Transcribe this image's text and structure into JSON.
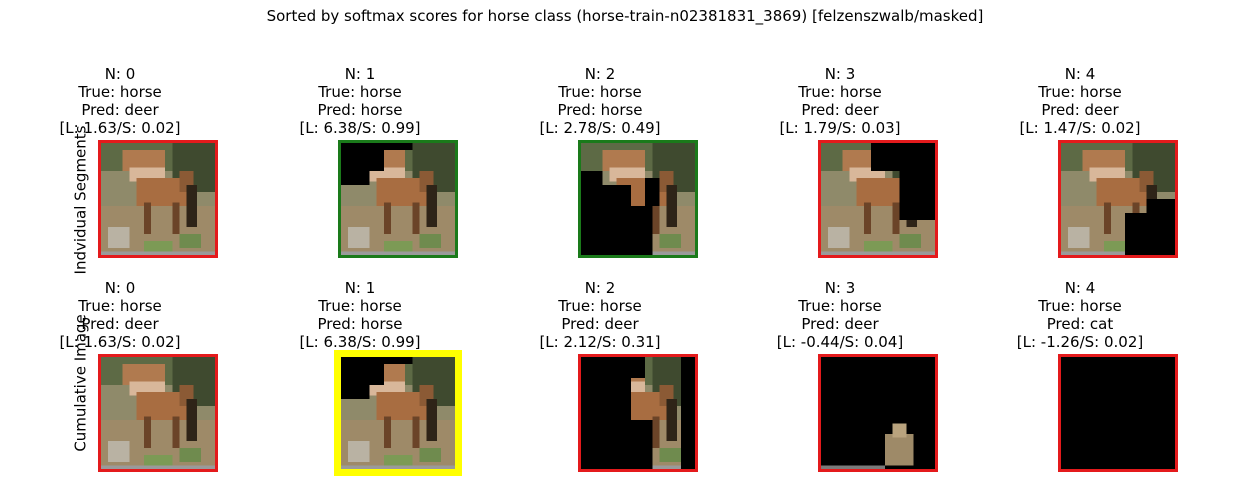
{
  "title": "Sorted by softmax scores for horse class (horse-train-n02381831_3869) [felzenszwalb/masked]",
  "rows": [
    {
      "label": "Indvidual Segments",
      "cells": [
        {
          "n": "N: 0",
          "true": "True: horse",
          "pred": "Pred: deer",
          "scores": "[L: 1.63/S: 0.02]",
          "border": "#e41a1c",
          "mask": "none"
        },
        {
          "n": "N: 1",
          "true": "True: horse",
          "pred": "Pred: horse",
          "scores": "[L: 6.38/S: 0.99]",
          "border": "#1a7a1a",
          "mask": "top-left"
        },
        {
          "n": "N: 2",
          "true": "True: horse",
          "pred": "Pred: horse",
          "scores": "[L: 2.78/S: 0.49]",
          "border": "#1a7a1a",
          "mask": "left-bottom"
        },
        {
          "n": "N: 3",
          "true": "True: horse",
          "pred": "Pred: deer",
          "scores": "[L: 1.79/S: 0.03]",
          "border": "#e41a1c",
          "mask": "top-right"
        },
        {
          "n": "N: 4",
          "true": "True: horse",
          "pred": "Pred: deer",
          "scores": "[L: 1.47/S: 0.02]",
          "border": "#e41a1c",
          "mask": "bottom-right"
        }
      ]
    },
    {
      "label": "Cumulative Image",
      "cells": [
        {
          "n": "N: 0",
          "true": "True: horse",
          "pred": "Pred: deer",
          "scores": "[L: 1.63/S: 0.02]",
          "border": "#e41a1c",
          "mask": "none"
        },
        {
          "n": "N: 1",
          "true": "True: horse",
          "pred": "Pred: horse",
          "scores": "[L: 6.38/S: 0.99]",
          "border": "#ffff00",
          "mask": "top-left"
        },
        {
          "n": "N: 2",
          "true": "True: horse",
          "pred": "Pred: deer",
          "scores": "[L: 2.12/S: 0.31]",
          "border": "#e41a1c",
          "mask": "most"
        },
        {
          "n": "N: 3",
          "true": "True: horse",
          "pred": "Pred: deer",
          "scores": "[L: -0.44/S: 0.04]",
          "border": "#e41a1c",
          "mask": "sliver"
        },
        {
          "n": "N: 4",
          "true": "True: horse",
          "pred": "Pred: cat",
          "scores": "[L: -1.26/S: 0.02]",
          "border": "#e41a1c",
          "mask": "all"
        }
      ]
    }
  ]
}
